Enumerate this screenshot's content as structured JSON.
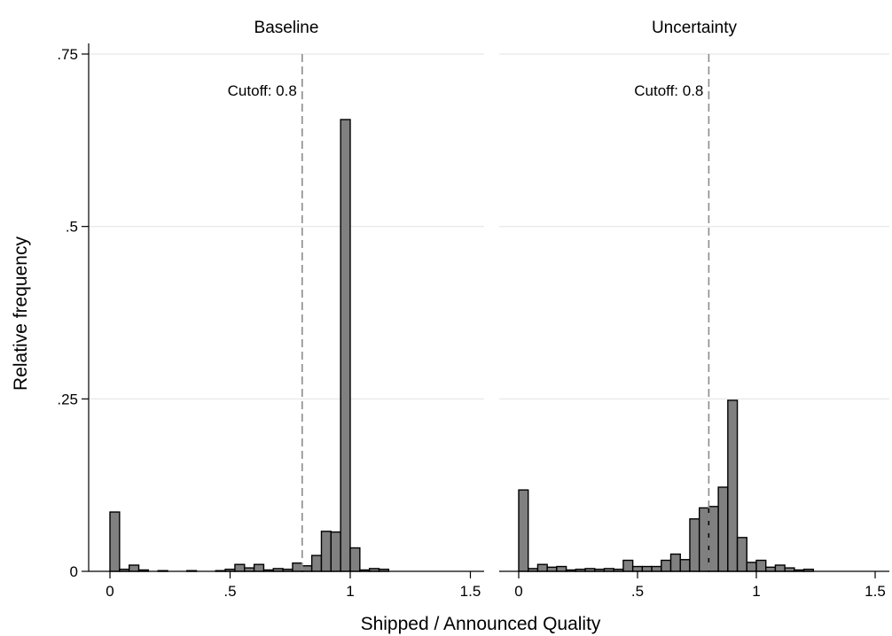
{
  "chart_data": {
    "type": "bar",
    "ylabel": "Relative frequency",
    "xlabel": "Shipped / Announced Quality",
    "ylim": [
      0,
      0.75
    ],
    "y_ticks": [
      {
        "value": 0,
        "label": "0"
      },
      {
        "value": 0.25,
        "label": ".25"
      },
      {
        "value": 0.5,
        "label": ".5"
      },
      {
        "value": 0.75,
        "label": ".75"
      }
    ],
    "x_ticks": [
      {
        "value": 0,
        "label": "0"
      },
      {
        "value": 0.5,
        "label": ".5"
      },
      {
        "value": 1,
        "label": "1"
      },
      {
        "value": 1.5,
        "label": "1.5"
      }
    ],
    "grid": true,
    "bin_width": 0.04,
    "panels": [
      {
        "title": "Baseline",
        "xlim": [
          -0.1,
          1.55
        ],
        "cutoff": {
          "value": 0.8,
          "label": "Cutoff: 0.8"
        },
        "bins": [
          [
            0.0,
            0.086
          ],
          [
            0.04,
            0.003
          ],
          [
            0.08,
            0.009
          ],
          [
            0.12,
            0.002
          ],
          [
            0.2,
            0.001
          ],
          [
            0.32,
            0.001
          ],
          [
            0.44,
            0.001
          ],
          [
            0.48,
            0.003
          ],
          [
            0.52,
            0.01
          ],
          [
            0.56,
            0.005
          ],
          [
            0.6,
            0.01
          ],
          [
            0.64,
            0.002
          ],
          [
            0.68,
            0.004
          ],
          [
            0.72,
            0.003
          ],
          [
            0.76,
            0.012
          ],
          [
            0.8,
            0.008
          ],
          [
            0.84,
            0.023
          ],
          [
            0.88,
            0.058
          ],
          [
            0.92,
            0.057
          ],
          [
            0.96,
            0.655
          ],
          [
            1.0,
            0.034
          ],
          [
            1.04,
            0.002
          ],
          [
            1.08,
            0.004
          ],
          [
            1.12,
            0.003
          ]
        ]
      },
      {
        "title": "Uncertainty",
        "xlim": [
          -0.1,
          1.55
        ],
        "cutoff": {
          "value": 0.8,
          "label": "Cutoff: 0.8"
        },
        "bins": [
          [
            0.0,
            0.118
          ],
          [
            0.04,
            0.004
          ],
          [
            0.08,
            0.01
          ],
          [
            0.12,
            0.006
          ],
          [
            0.16,
            0.007
          ],
          [
            0.2,
            0.002
          ],
          [
            0.24,
            0.003
          ],
          [
            0.28,
            0.004
          ],
          [
            0.32,
            0.003
          ],
          [
            0.36,
            0.004
          ],
          [
            0.4,
            0.003
          ],
          [
            0.44,
            0.016
          ],
          [
            0.48,
            0.007
          ],
          [
            0.52,
            0.007
          ],
          [
            0.56,
            0.007
          ],
          [
            0.6,
            0.016
          ],
          [
            0.64,
            0.025
          ],
          [
            0.68,
            0.017
          ],
          [
            0.72,
            0.076
          ],
          [
            0.76,
            0.092
          ],
          [
            0.8,
            0.094
          ],
          [
            0.84,
            0.122
          ],
          [
            0.88,
            0.248
          ],
          [
            0.92,
            0.049
          ],
          [
            0.96,
            0.013
          ],
          [
            1.0,
            0.016
          ],
          [
            1.04,
            0.006
          ],
          [
            1.08,
            0.009
          ],
          [
            1.12,
            0.005
          ],
          [
            1.16,
            0.002
          ],
          [
            1.2,
            0.003
          ]
        ]
      }
    ]
  }
}
